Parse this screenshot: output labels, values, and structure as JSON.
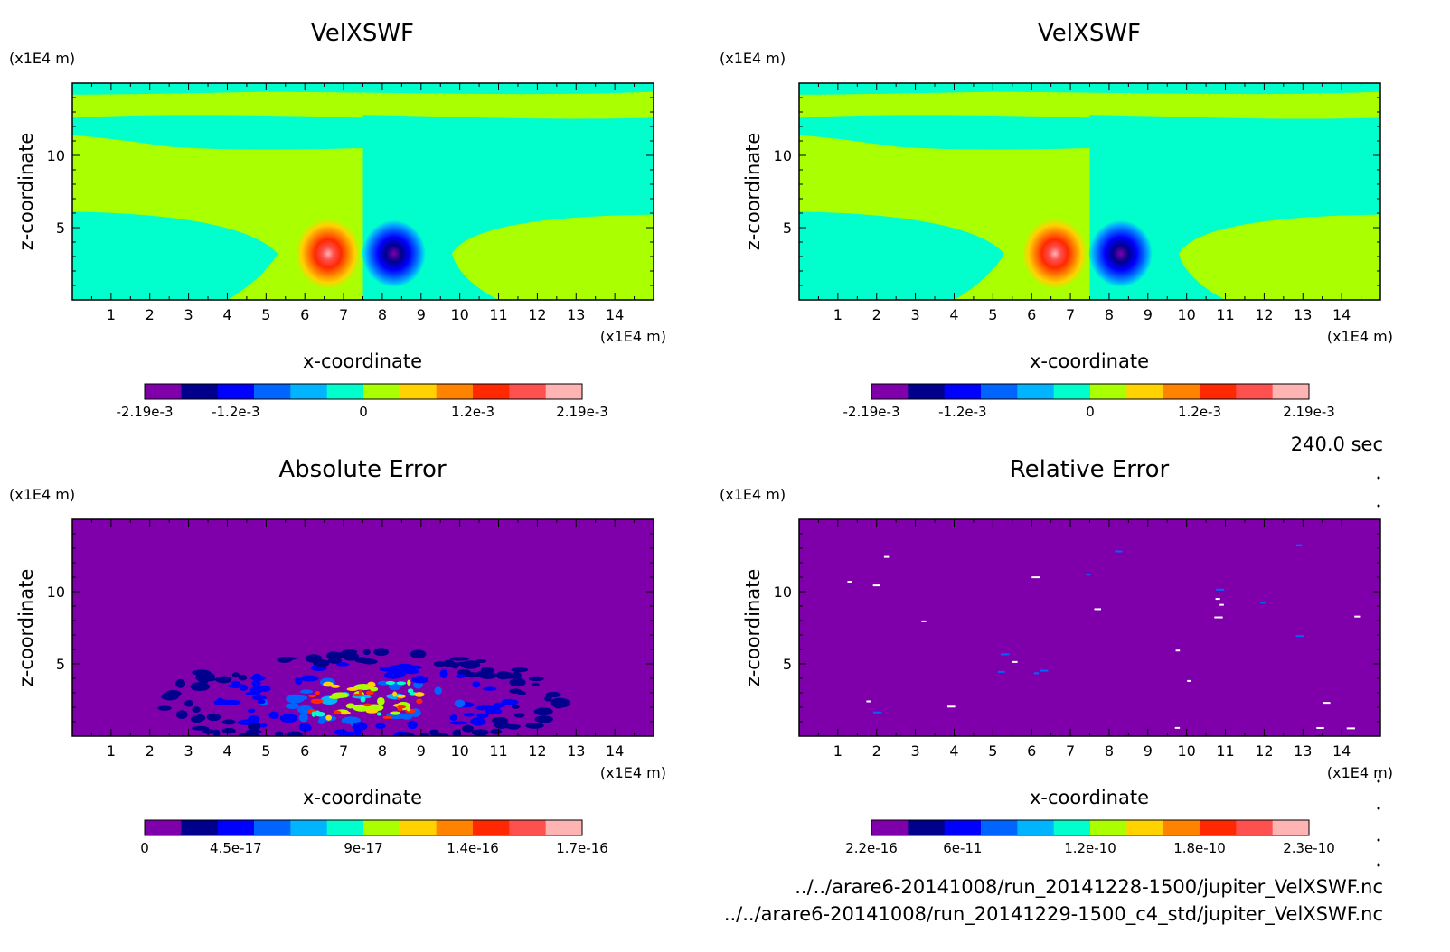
{
  "colors": {
    "palette": [
      "#7f00aa",
      "#00008c",
      "#0000ff",
      "#0064ff",
      "#00b4ff",
      "#00ffcc",
      "#aaff00",
      "#ffd200",
      "#ff8200",
      "#ff2800",
      "#ff5050",
      "#ffb4b4"
    ]
  },
  "time_label": "240.0 sec",
  "footer": {
    "line1": "../../arare6-20141008/run_20141228-1500/jupiter_VelXSWF.nc",
    "line2": "../../arare6-20141008/run_20141229-1500_c4_std/jupiter_VelXSWF.nc"
  },
  "chart_data": [
    {
      "type": "heatmap",
      "title": "VelXSWF",
      "xlabel": "x-coordinate",
      "ylabel": "z-coordinate",
      "x_unit": "(x1E4 m)",
      "y_unit": "(x1E4 m)",
      "xlim": [
        0,
        15
      ],
      "ylim": [
        0,
        15
      ],
      "x_ticks": [
        "1",
        "2",
        "3",
        "4",
        "5",
        "6",
        "7",
        "8",
        "9",
        "10",
        "11",
        "12",
        "13",
        "14"
      ],
      "y_ticks": [
        "5",
        "10"
      ],
      "colorbar": {
        "levels": 12,
        "tick_labels": [
          "-2.19e-3",
          "-1.2e-3",
          "0",
          "1.2e-3",
          "2.19e-3"
        ],
        "min": -0.00219,
        "max": 0.00219
      },
      "features": {
        "positive_max_at": [
          6.6,
          3.2
        ],
        "negative_min_at": [
          8.3,
          3.2
        ],
        "discontinuity_x": 7.5
      }
    },
    {
      "type": "heatmap",
      "title": "VelXSWF",
      "xlabel": "x-coordinate",
      "ylabel": "z-coordinate",
      "x_unit": "(x1E4 m)",
      "y_unit": "(x1E4 m)",
      "xlim": [
        0,
        15
      ],
      "ylim": [
        0,
        15
      ],
      "x_ticks": [
        "1",
        "2",
        "3",
        "4",
        "5",
        "6",
        "7",
        "8",
        "9",
        "10",
        "11",
        "12",
        "13",
        "14"
      ],
      "y_ticks": [
        "5",
        "10"
      ],
      "colorbar": {
        "levels": 12,
        "tick_labels": [
          "-2.19e-3",
          "-1.2e-3",
          "0",
          "1.2e-3",
          "2.19e-3"
        ],
        "min": -0.00219,
        "max": 0.00219
      },
      "features": {
        "positive_max_at": [
          6.6,
          3.2
        ],
        "negative_min_at": [
          8.3,
          3.2
        ],
        "discontinuity_x": 7.5
      }
    },
    {
      "type": "heatmap",
      "title": "Absolute Error",
      "xlabel": "x-coordinate",
      "ylabel": "z-coordinate",
      "x_unit": "(x1E4 m)",
      "y_unit": "(x1E4 m)",
      "xlim": [
        0,
        15
      ],
      "ylim": [
        0,
        15
      ],
      "x_ticks": [
        "1",
        "2",
        "3",
        "4",
        "5",
        "6",
        "7",
        "8",
        "9",
        "10",
        "11",
        "12",
        "13",
        "14"
      ],
      "y_ticks": [
        "5",
        "10"
      ],
      "colorbar": {
        "levels": 12,
        "tick_labels": [
          "0",
          "4.5e-17",
          "9e-17",
          "1.4e-16",
          "1.7e-16"
        ],
        "min": 0,
        "max": 1.7e-16
      },
      "features": {
        "error_region_center": [
          7.5,
          2.5
        ]
      }
    },
    {
      "type": "heatmap",
      "title": "Relative Error",
      "xlabel": "x-coordinate",
      "ylabel": "z-coordinate",
      "x_unit": "(x1E4 m)",
      "y_unit": "(x1E4 m)",
      "xlim": [
        0,
        15
      ],
      "ylim": [
        0,
        15
      ],
      "x_ticks": [
        "1",
        "2",
        "3",
        "4",
        "5",
        "6",
        "7",
        "8",
        "9",
        "10",
        "11",
        "12",
        "13",
        "14"
      ],
      "y_ticks": [
        "5",
        "10"
      ],
      "colorbar": {
        "levels": 12,
        "tick_labels": [
          "2.2e-16",
          "6e-11",
          "1.2e-10",
          "1.8e-10",
          "2.3e-10"
        ],
        "min": 2.2e-16,
        "max": 2.3e-10
      },
      "features": {
        "background": "uniform minimum level with sparse isolated specks"
      }
    }
  ]
}
